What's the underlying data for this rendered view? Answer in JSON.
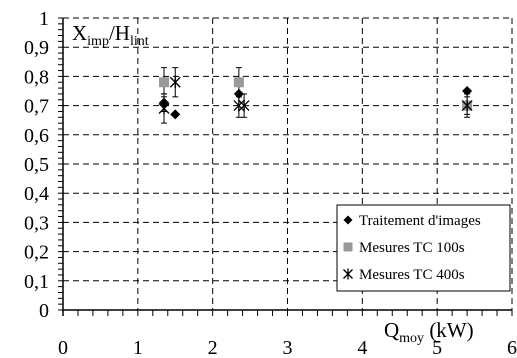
{
  "chart_data": {
    "type": "scatter",
    "ylabel": {
      "main": "X",
      "sub1": "imp",
      "sep": "/H",
      "sub2": "lint"
    },
    "xlabel": {
      "main": "Q",
      "sub": "moy",
      "unit": " (kW)"
    },
    "xlim": [
      0,
      6
    ],
    "ylim": [
      0,
      1
    ],
    "x_ticks": [
      "0",
      "1",
      "2",
      "3",
      "4",
      "5",
      "6"
    ],
    "y_ticks": [
      "0",
      "0,1",
      "0,2",
      "0,3",
      "0,4",
      "0,5",
      "0,6",
      "0,7",
      "0,8",
      "0,9",
      "1"
    ],
    "grid": true,
    "legend_position": "bottom-right",
    "series": [
      {
        "name": "Traitement d'images",
        "marker": "diamond",
        "color": "#000000",
        "points": [
          {
            "x": 1.35,
            "y": 0.71,
            "err": 0.03
          },
          {
            "x": 1.5,
            "y": 0.67
          },
          {
            "x": 2.35,
            "y": 0.74
          },
          {
            "x": 5.4,
            "y": 0.75
          }
        ]
      },
      {
        "name": "Mesures TC 100s",
        "marker": "square",
        "color": "#999999",
        "points": [
          {
            "x": 1.35,
            "y": 0.78,
            "err": 0.05
          },
          {
            "x": 2.35,
            "y": 0.78,
            "err": 0.05
          },
          {
            "x": 5.4,
            "y": 0.7,
            "err": 0.03
          }
        ]
      },
      {
        "name": "Mesures TC 400s",
        "marker": "star",
        "color": "#000000",
        "points": [
          {
            "x": 1.35,
            "y": 0.69,
            "err": 0.05
          },
          {
            "x": 1.5,
            "y": 0.78,
            "err": 0.05
          },
          {
            "x": 2.35,
            "y": 0.7,
            "err": 0.04
          },
          {
            "x": 2.42,
            "y": 0.7,
            "err": 0.04
          },
          {
            "x": 5.4,
            "y": 0.7,
            "err": 0.04
          }
        ]
      }
    ]
  }
}
